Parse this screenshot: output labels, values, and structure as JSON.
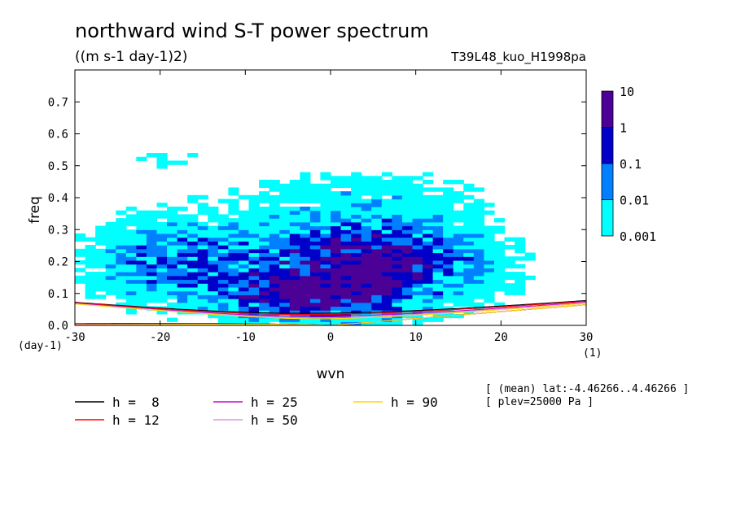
{
  "chart_data": {
    "type": "heatmap",
    "title": "northward wind S-T power spectrum",
    "subtitle": "((m s-1 day-1)2)",
    "run_label": "T39L48_kuo_H1998pa",
    "xlabel": "wvn",
    "ylabel": "freq",
    "x_unit": "(1)",
    "y_unit": "(day-1)",
    "xlim": [
      -30,
      30
    ],
    "ylim": [
      0,
      0.8
    ],
    "x_ticks": [
      -30,
      -20,
      -10,
      0,
      10,
      20,
      30
    ],
    "x_tick_labels": [
      "-30",
      "-20",
      "-10",
      "0",
      "10",
      "20",
      "30"
    ],
    "y_ticks": [
      0,
      0.1,
      0.2,
      0.3,
      0.4,
      0.5,
      0.6,
      0.7
    ],
    "y_tick_labels": [
      "0.0",
      "0.1",
      "0.2",
      "0.3",
      "0.4",
      "0.5",
      "0.6",
      "0.7"
    ],
    "colorbar": {
      "levels": [
        "0.001",
        "0.01",
        "0.1",
        "1",
        "10"
      ],
      "colors": [
        "#00ffff",
        "#0080ff",
        "#0000c8",
        "#4b0096"
      ]
    },
    "info": [
      "[ (mean) lat:-4.46266..4.46266 ]",
      "[ plev=25000 Pa ]"
    ],
    "dispersion_curves": [
      {
        "name": "h =  8",
        "h": 8,
        "color": "#000000"
      },
      {
        "name": "h = 12",
        "h": 12,
        "color": "#ff0000"
      },
      {
        "name": "h = 25",
        "h": 25,
        "color": "#cc00cc"
      },
      {
        "name": "h = 50",
        "h": 50,
        "color": "#e090e0"
      },
      {
        "name": "h = 90",
        "h": 90,
        "color": "#ffd700"
      }
    ],
    "power_blobs": [
      {
        "k": -2,
        "f": 0.18,
        "sk": 13,
        "sf": 0.12,
        "a": 1.0
      },
      {
        "k": -5,
        "f": 0.08,
        "sk": 5,
        "sf": 0.04,
        "a": 0.8
      },
      {
        "k": 3,
        "f": 0.14,
        "sk": 4,
        "sf": 0.08,
        "a": 0.7
      },
      {
        "k": -22,
        "f": 0.2,
        "sk": 6,
        "sf": 0.1,
        "a": 0.5
      },
      {
        "k": 10,
        "f": 0.2,
        "sk": 7,
        "sf": 0.09,
        "a": 0.45
      },
      {
        "k": -20,
        "f": 0.52,
        "sk": 4,
        "sf": 0.03,
        "a": 0.3
      },
      {
        "k": 5,
        "f": 0.42,
        "sk": 12,
        "sf": 0.06,
        "a": 0.3
      }
    ]
  }
}
